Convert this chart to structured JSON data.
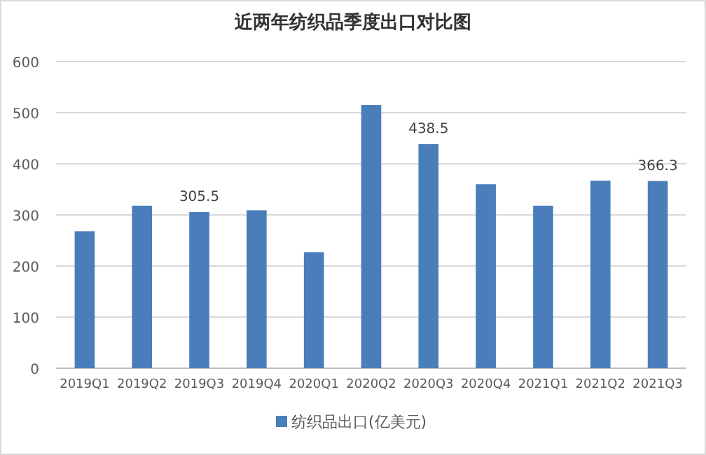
{
  "chart_data": {
    "type": "bar",
    "title": "近两年纺织品季度出口对比图",
    "categories": [
      "2019Q1",
      "2019Q2",
      "2019Q3",
      "2019Q4",
      "2020Q1",
      "2020Q2",
      "2020Q3",
      "2020Q4",
      "2021Q1",
      "2021Q2",
      "2021Q3"
    ],
    "series": [
      {
        "name": "纺织品出口(亿美元)",
        "color": "#4a7ebb",
        "values": [
          268,
          318,
          305.5,
          309,
          227,
          515,
          438.5,
          360,
          318,
          367,
          366.3
        ],
        "value_labels": [
          null,
          null,
          "305.5",
          null,
          null,
          null,
          "438.5",
          null,
          null,
          null,
          "366.3"
        ]
      }
    ],
    "ylim": [
      0,
      600
    ],
    "yticks": [
      0,
      100,
      200,
      300,
      400,
      500,
      600
    ],
    "grid": "y",
    "legend": "bottom"
  }
}
